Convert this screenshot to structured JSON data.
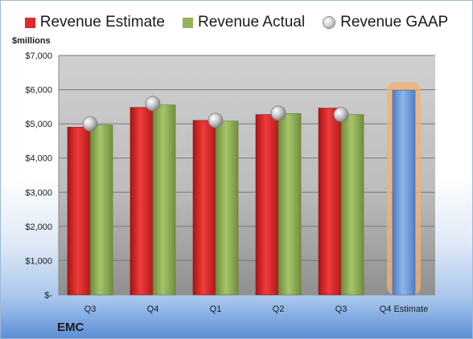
{
  "chart_data": {
    "type": "bar",
    "title": "",
    "company": "EMC",
    "unit_label": "$millions",
    "categories": [
      "Q3",
      "Q4",
      "Q1",
      "Q2",
      "Q3",
      "Q4 Estimate"
    ],
    "series": [
      {
        "name": "Revenue Estimate",
        "kind": "bar",
        "color": "#e02a2a",
        "values": [
          4900,
          5480,
          5100,
          5270,
          5460,
          null
        ]
      },
      {
        "name": "Revenue Actual",
        "kind": "bar",
        "color": "#93b35a",
        "values": [
          4960,
          5550,
          5080,
          5300,
          5270,
          null
        ]
      },
      {
        "name": "Revenue GAAP",
        "kind": "marker",
        "color": "#c8c8c8",
        "values": [
          5000,
          5590,
          5100,
          5310,
          5270,
          null
        ]
      },
      {
        "name": "Q4 Estimate",
        "kind": "bar",
        "color": "#6f9fdc",
        "highlight": "#f5b070",
        "values": [
          null,
          null,
          null,
          null,
          null,
          5980
        ]
      }
    ],
    "yticks": [
      0,
      1000,
      2000,
      3000,
      4000,
      5000,
      6000,
      7000
    ],
    "ytick_labels": [
      "$-",
      "$1,000",
      "$2,000",
      "$3,000",
      "$4,000",
      "$5,000",
      "$6,000",
      "$7,000"
    ],
    "ylim": [
      0,
      7000
    ],
    "grid": true,
    "legend_position": "top"
  }
}
